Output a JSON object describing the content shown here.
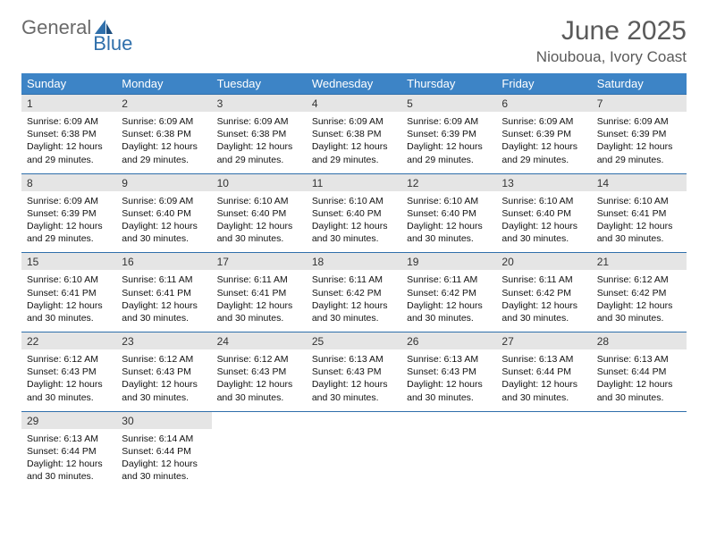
{
  "logo": {
    "text1": "General",
    "text2": "Blue"
  },
  "title": "June 2025",
  "location": "Niouboua, Ivory Coast",
  "colors": {
    "header_bg": "#3d84c6",
    "rule": "#2f6fab",
    "daynum_bg": "#e5e5e5",
    "text": "#111111",
    "title_text": "#5a5a5a"
  },
  "day_headers": [
    "Sunday",
    "Monday",
    "Tuesday",
    "Wednesday",
    "Thursday",
    "Friday",
    "Saturday"
  ],
  "weeks": [
    [
      {
        "n": "1",
        "sr": "6:09 AM",
        "ss": "6:38 PM",
        "dl": "12 hours and 29 minutes."
      },
      {
        "n": "2",
        "sr": "6:09 AM",
        "ss": "6:38 PM",
        "dl": "12 hours and 29 minutes."
      },
      {
        "n": "3",
        "sr": "6:09 AM",
        "ss": "6:38 PM",
        "dl": "12 hours and 29 minutes."
      },
      {
        "n": "4",
        "sr": "6:09 AM",
        "ss": "6:38 PM",
        "dl": "12 hours and 29 minutes."
      },
      {
        "n": "5",
        "sr": "6:09 AM",
        "ss": "6:39 PM",
        "dl": "12 hours and 29 minutes."
      },
      {
        "n": "6",
        "sr": "6:09 AM",
        "ss": "6:39 PM",
        "dl": "12 hours and 29 minutes."
      },
      {
        "n": "7",
        "sr": "6:09 AM",
        "ss": "6:39 PM",
        "dl": "12 hours and 29 minutes."
      }
    ],
    [
      {
        "n": "8",
        "sr": "6:09 AM",
        "ss": "6:39 PM",
        "dl": "12 hours and 29 minutes."
      },
      {
        "n": "9",
        "sr": "6:09 AM",
        "ss": "6:40 PM",
        "dl": "12 hours and 30 minutes."
      },
      {
        "n": "10",
        "sr": "6:10 AM",
        "ss": "6:40 PM",
        "dl": "12 hours and 30 minutes."
      },
      {
        "n": "11",
        "sr": "6:10 AM",
        "ss": "6:40 PM",
        "dl": "12 hours and 30 minutes."
      },
      {
        "n": "12",
        "sr": "6:10 AM",
        "ss": "6:40 PM",
        "dl": "12 hours and 30 minutes."
      },
      {
        "n": "13",
        "sr": "6:10 AM",
        "ss": "6:40 PM",
        "dl": "12 hours and 30 minutes."
      },
      {
        "n": "14",
        "sr": "6:10 AM",
        "ss": "6:41 PM",
        "dl": "12 hours and 30 minutes."
      }
    ],
    [
      {
        "n": "15",
        "sr": "6:10 AM",
        "ss": "6:41 PM",
        "dl": "12 hours and 30 minutes."
      },
      {
        "n": "16",
        "sr": "6:11 AM",
        "ss": "6:41 PM",
        "dl": "12 hours and 30 minutes."
      },
      {
        "n": "17",
        "sr": "6:11 AM",
        "ss": "6:41 PM",
        "dl": "12 hours and 30 minutes."
      },
      {
        "n": "18",
        "sr": "6:11 AM",
        "ss": "6:42 PM",
        "dl": "12 hours and 30 minutes."
      },
      {
        "n": "19",
        "sr": "6:11 AM",
        "ss": "6:42 PM",
        "dl": "12 hours and 30 minutes."
      },
      {
        "n": "20",
        "sr": "6:11 AM",
        "ss": "6:42 PM",
        "dl": "12 hours and 30 minutes."
      },
      {
        "n": "21",
        "sr": "6:12 AM",
        "ss": "6:42 PM",
        "dl": "12 hours and 30 minutes."
      }
    ],
    [
      {
        "n": "22",
        "sr": "6:12 AM",
        "ss": "6:43 PM",
        "dl": "12 hours and 30 minutes."
      },
      {
        "n": "23",
        "sr": "6:12 AM",
        "ss": "6:43 PM",
        "dl": "12 hours and 30 minutes."
      },
      {
        "n": "24",
        "sr": "6:12 AM",
        "ss": "6:43 PM",
        "dl": "12 hours and 30 minutes."
      },
      {
        "n": "25",
        "sr": "6:13 AM",
        "ss": "6:43 PM",
        "dl": "12 hours and 30 minutes."
      },
      {
        "n": "26",
        "sr": "6:13 AM",
        "ss": "6:43 PM",
        "dl": "12 hours and 30 minutes."
      },
      {
        "n": "27",
        "sr": "6:13 AM",
        "ss": "6:44 PM",
        "dl": "12 hours and 30 minutes."
      },
      {
        "n": "28",
        "sr": "6:13 AM",
        "ss": "6:44 PM",
        "dl": "12 hours and 30 minutes."
      }
    ],
    [
      {
        "n": "29",
        "sr": "6:13 AM",
        "ss": "6:44 PM",
        "dl": "12 hours and 30 minutes."
      },
      {
        "n": "30",
        "sr": "6:14 AM",
        "ss": "6:44 PM",
        "dl": "12 hours and 30 minutes."
      },
      null,
      null,
      null,
      null,
      null
    ]
  ],
  "labels": {
    "sunrise": "Sunrise: ",
    "sunset": "Sunset: ",
    "daylight": "Daylight: "
  }
}
